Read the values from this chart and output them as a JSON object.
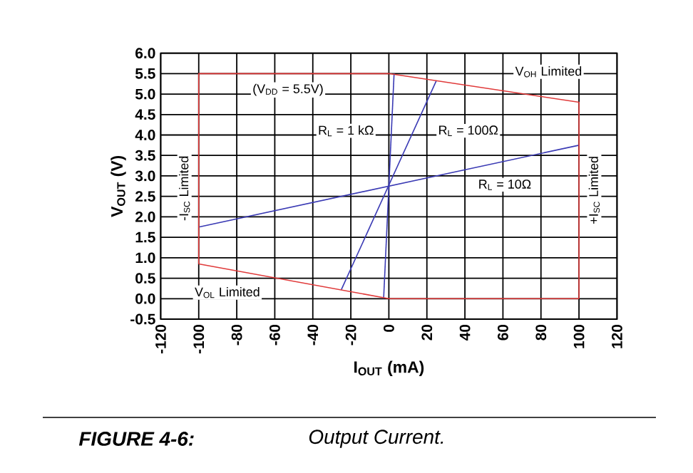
{
  "chart_data": {
    "type": "line",
    "xlabel": "I$_{OUT}$ (mA)",
    "ylabel": "V$_{OUT}$ (V)",
    "xlim": [
      -120,
      120
    ],
    "ylim": [
      -0.5,
      6.0
    ],
    "xticks": [
      -120,
      -100,
      -80,
      -60,
      -40,
      -20,
      0,
      20,
      40,
      60,
      80,
      100,
      120
    ],
    "yticks": [
      {
        "value": -0.5,
        "label": "-0.5"
      },
      {
        "value": 0,
        "label": "0.0"
      },
      {
        "value": 0.5,
        "label": "0.5"
      },
      {
        "value": 1,
        "label": "1.0"
      },
      {
        "value": 1.5,
        "label": "1.5"
      },
      {
        "value": 2,
        "label": "2.0"
      },
      {
        "value": 2.5,
        "label": "2.5"
      },
      {
        "value": 3,
        "label": "3.0"
      },
      {
        "value": 3.5,
        "label": "3.5"
      },
      {
        "value": 4,
        "label": "4.0"
      },
      {
        "value": 4.5,
        "label": "4.5"
      },
      {
        "value": 5,
        "label": "5.0"
      },
      {
        "value": 5.5,
        "label": "5.5"
      },
      {
        "value": 6,
        "label": "6.0"
      }
    ],
    "grid": true,
    "marker": "none",
    "line_style": "solid",
    "series": [
      {
        "name": "R$_{L}$ = 10Ω",
        "color": "#3a3ab4",
        "x": [
          -100,
          100
        ],
        "values": [
          1.75,
          3.75
        ]
      },
      {
        "name": "R$_{L}$ = 1 kΩ",
        "color": "#3a3ab4",
        "x": [
          -2.75,
          2.75
        ],
        "values": [
          0,
          5.5
        ]
      },
      {
        "name": "R$_{L}$ = 100Ω",
        "color": "#3a3ab4",
        "x": [
          -25,
          25
        ],
        "values": [
          0.22,
          5.33
        ]
      },
      {
        "color": "#e03a3a",
        "x": [
          -100,
          -100,
          0,
          100,
          100
        ],
        "values": [
          0.85,
          5.5,
          5.5,
          4.8,
          0
        ]
      },
      {
        "color": "#e03a3a",
        "x": [
          -100,
          0,
          100
        ],
        "values": [
          0.85,
          0,
          0
        ]
      }
    ],
    "annotations": [
      "(V$_{DD}$ = 5.5V)",
      "V$_{OH}$ Limited",
      "V$_{OL}$ Limited",
      "-I$_{SC}$ Limited",
      "+I$_{SC}$ Limited",
      "FIGURE 4-6:",
      "Output Current."
    ]
  }
}
